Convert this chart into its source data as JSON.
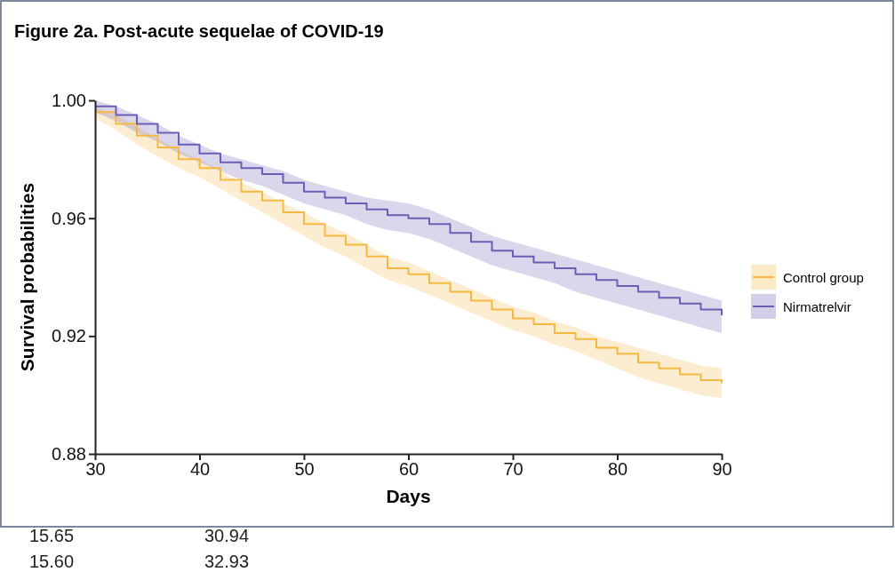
{
  "chart_data": {
    "type": "step",
    "title": "Figure 2a. Post-acute sequelae of COVID-19",
    "xlabel": "Days",
    "ylabel": "Survival probabilities",
    "x": [
      30,
      32,
      34,
      36,
      38,
      40,
      42,
      44,
      46,
      48,
      50,
      52,
      54,
      56,
      58,
      60,
      62,
      64,
      66,
      68,
      70,
      72,
      74,
      76,
      78,
      80,
      82,
      84,
      86,
      88,
      90
    ],
    "series": [
      {
        "name": "Control group",
        "color": "#f5b942",
        "values": [
          0.996,
          0.992,
          0.988,
          0.984,
          0.98,
          0.977,
          0.973,
          0.969,
          0.966,
          0.962,
          0.958,
          0.954,
          0.951,
          0.947,
          0.943,
          0.941,
          0.938,
          0.935,
          0.932,
          0.929,
          0.926,
          0.924,
          0.921,
          0.919,
          0.916,
          0.914,
          0.911,
          0.909,
          0.907,
          0.905,
          0.904
        ],
        "lower": [
          0.994,
          0.99,
          0.985,
          0.981,
          0.977,
          0.974,
          0.97,
          0.966,
          0.962,
          0.958,
          0.954,
          0.95,
          0.947,
          0.943,
          0.939,
          0.937,
          0.934,
          0.931,
          0.928,
          0.925,
          0.922,
          0.92,
          0.917,
          0.915,
          0.912,
          0.909,
          0.906,
          0.904,
          0.902,
          0.9,
          0.899
        ],
        "upper": [
          0.998,
          0.995,
          0.991,
          0.987,
          0.983,
          0.98,
          0.976,
          0.972,
          0.969,
          0.965,
          0.962,
          0.958,
          0.955,
          0.951,
          0.947,
          0.945,
          0.942,
          0.939,
          0.936,
          0.933,
          0.93,
          0.928,
          0.925,
          0.923,
          0.92,
          0.918,
          0.916,
          0.914,
          0.912,
          0.91,
          0.909
        ]
      },
      {
        "name": "Nirmatrelvir",
        "color": "#6b5fb5",
        "values": [
          0.998,
          0.995,
          0.992,
          0.989,
          0.985,
          0.982,
          0.979,
          0.977,
          0.975,
          0.972,
          0.969,
          0.967,
          0.965,
          0.963,
          0.961,
          0.96,
          0.958,
          0.955,
          0.952,
          0.949,
          0.947,
          0.945,
          0.943,
          0.941,
          0.939,
          0.937,
          0.935,
          0.933,
          0.931,
          0.929,
          0.927
        ],
        "lower": [
          0.996,
          0.993,
          0.989,
          0.986,
          0.982,
          0.979,
          0.976,
          0.973,
          0.971,
          0.968,
          0.965,
          0.963,
          0.961,
          0.958,
          0.956,
          0.955,
          0.953,
          0.95,
          0.947,
          0.944,
          0.942,
          0.94,
          0.938,
          0.935,
          0.933,
          0.931,
          0.929,
          0.927,
          0.925,
          0.923,
          0.921
        ],
        "upper": [
          1.0,
          0.998,
          0.995,
          0.992,
          0.988,
          0.985,
          0.982,
          0.98,
          0.978,
          0.976,
          0.973,
          0.971,
          0.969,
          0.967,
          0.966,
          0.965,
          0.963,
          0.96,
          0.957,
          0.954,
          0.952,
          0.95,
          0.948,
          0.946,
          0.944,
          0.942,
          0.94,
          0.938,
          0.936,
          0.934,
          0.932
        ]
      }
    ],
    "xlim": [
      30,
      90
    ],
    "xticks": [
      30,
      40,
      50,
      60,
      70,
      80,
      90
    ],
    "ylim": [
      0.88,
      1.0
    ],
    "yticks": [
      0.88,
      0.92,
      0.96,
      {
        "value": 1.0,
        "label": "1.00"
      }
    ],
    "grid": false,
    "legend": "right",
    "line_style": "solid",
    "marker": "none",
    "annotations": [
      "15.65",
      "30.94",
      "15.60",
      "32.93"
    ]
  }
}
